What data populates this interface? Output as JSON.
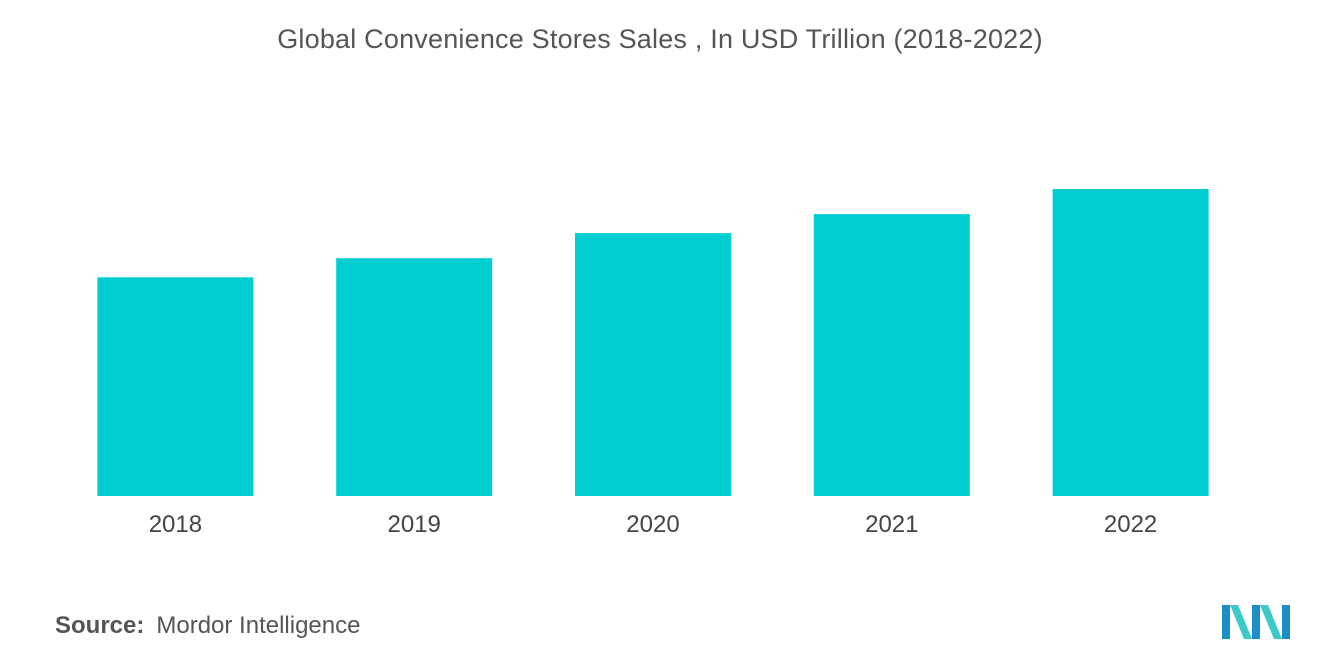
{
  "chart_data": {
    "type": "bar",
    "title": "Global Convenience Stores Sales , In USD Trillion (2018-2022)",
    "categories": [
      "2018",
      "2019",
      "2020",
      "2021",
      "2022"
    ],
    "values": [
      2.18,
      2.37,
      2.62,
      2.81,
      3.06
    ],
    "ylim": [
      0,
      3.06
    ],
    "xlabel": "",
    "ylabel": "",
    "grid": false,
    "legend": "none",
    "bar_color": "#00CED1"
  },
  "source": {
    "label": "Source:",
    "text": "Mordor Intelligence"
  },
  "logo": {
    "icon": "mordor-intelligence-logo-icon",
    "colors": [
      "#1e8fc6",
      "#3cc9c9"
    ]
  }
}
